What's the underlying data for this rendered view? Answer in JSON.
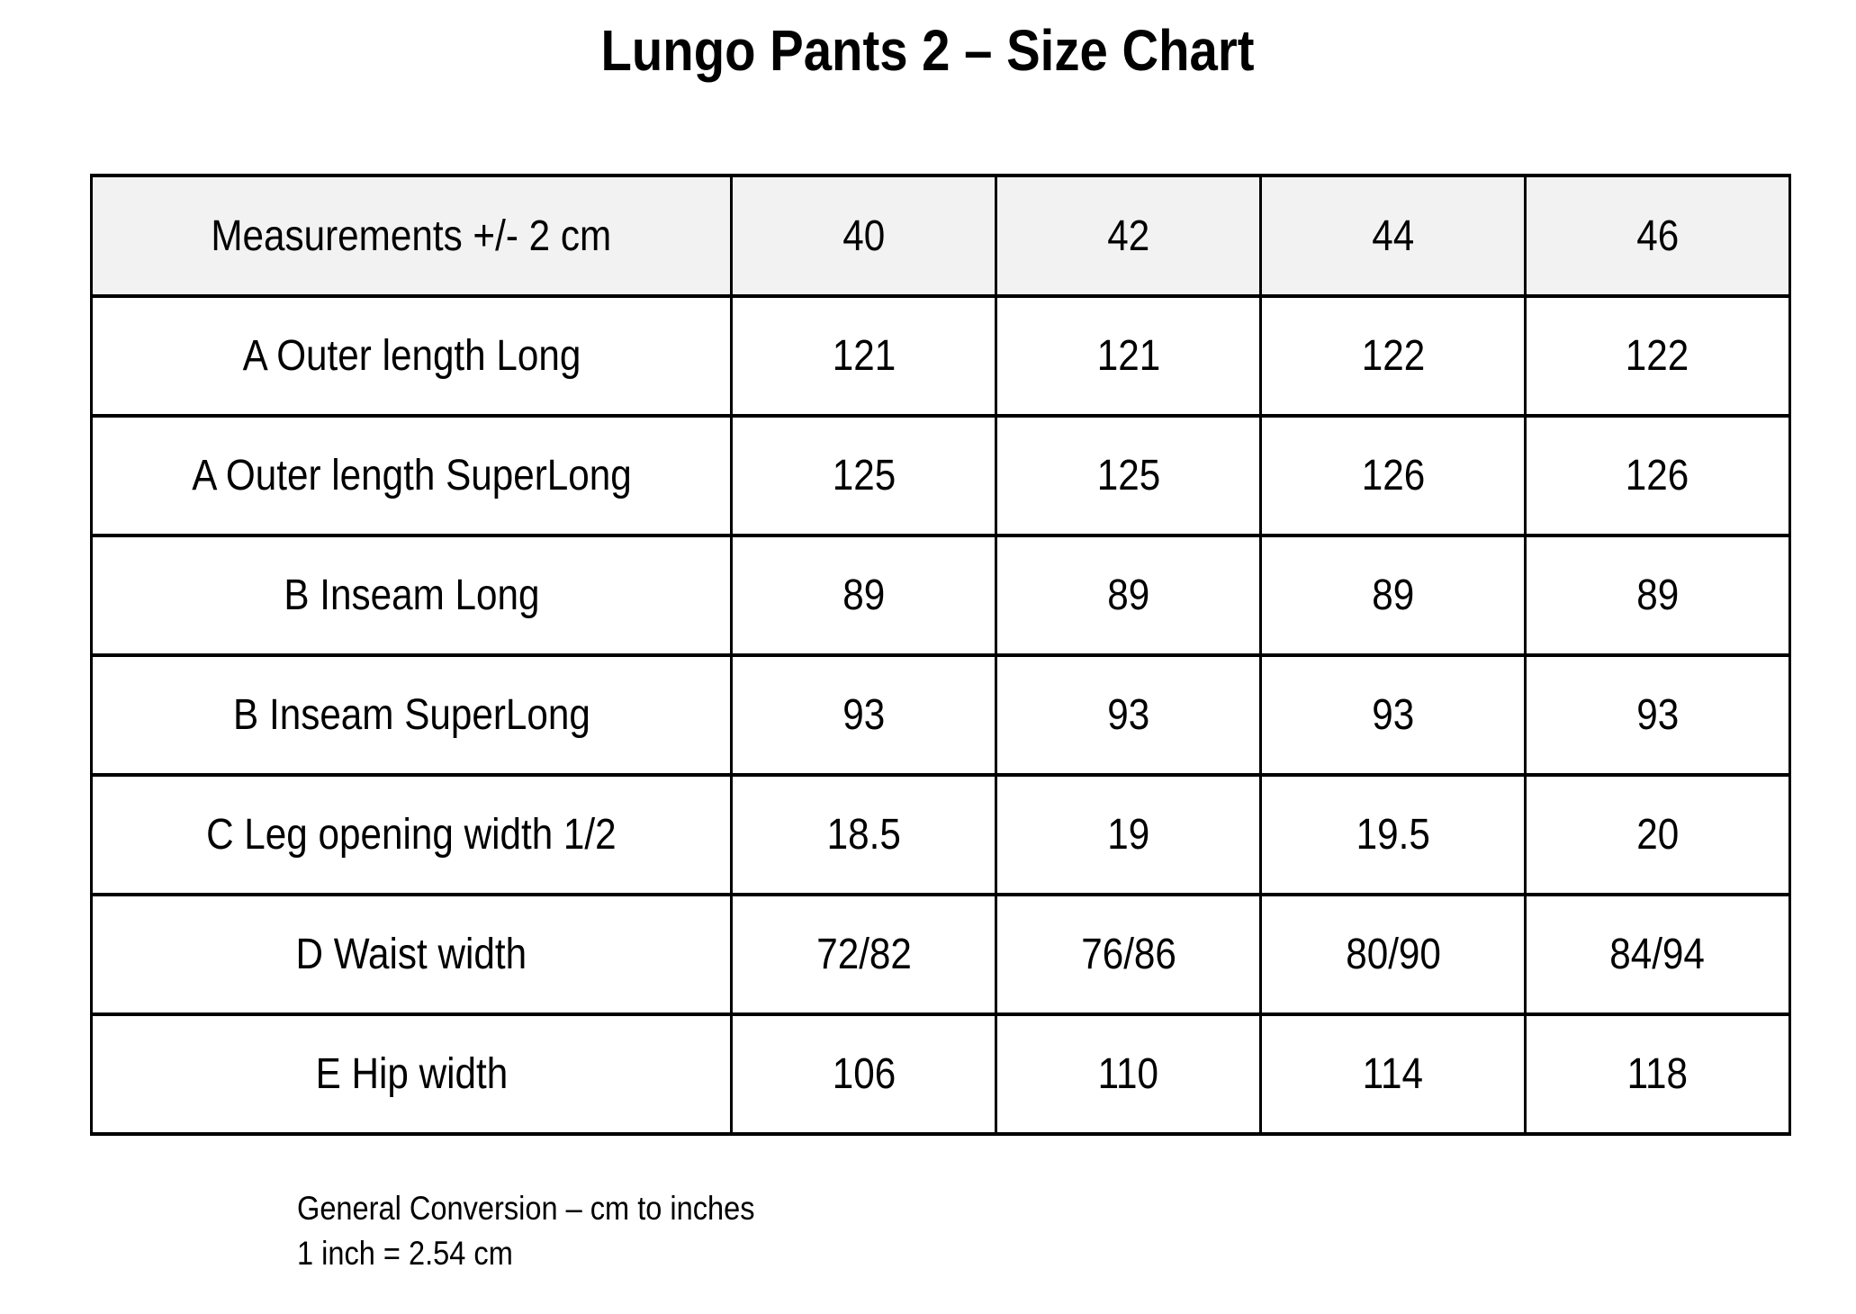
{
  "page": {
    "title": "Lungo Pants 2 – Size Chart"
  },
  "table": {
    "header": [
      "Measurements +/- 2 cm",
      "40",
      "42",
      "44",
      "46"
    ],
    "rows": [
      [
        "A Outer length Long",
        "121",
        "121",
        "122",
        "122"
      ],
      [
        "A Outer length SuperLong",
        "125",
        "125",
        "126",
        "126"
      ],
      [
        "B Inseam Long",
        "89",
        "89",
        "89",
        "89"
      ],
      [
        "B Inseam SuperLong",
        "93",
        "93",
        "93",
        "93"
      ],
      [
        "C Leg opening width 1/2",
        "18.5",
        "19",
        "19.5",
        "20"
      ],
      [
        "D Waist width",
        "72/82",
        "76/86",
        "80/90",
        "84/94"
      ],
      [
        "E Hip width",
        "106",
        "110",
        "114",
        "118"
      ]
    ]
  },
  "footer": {
    "line1": "General Conversion – cm to inches",
    "line2": "1 inch = 2.54 cm"
  },
  "colors": {
    "header_bg": "#f2f2f2",
    "border": "#000000",
    "text": "#000000",
    "page_bg": "#ffffff"
  }
}
